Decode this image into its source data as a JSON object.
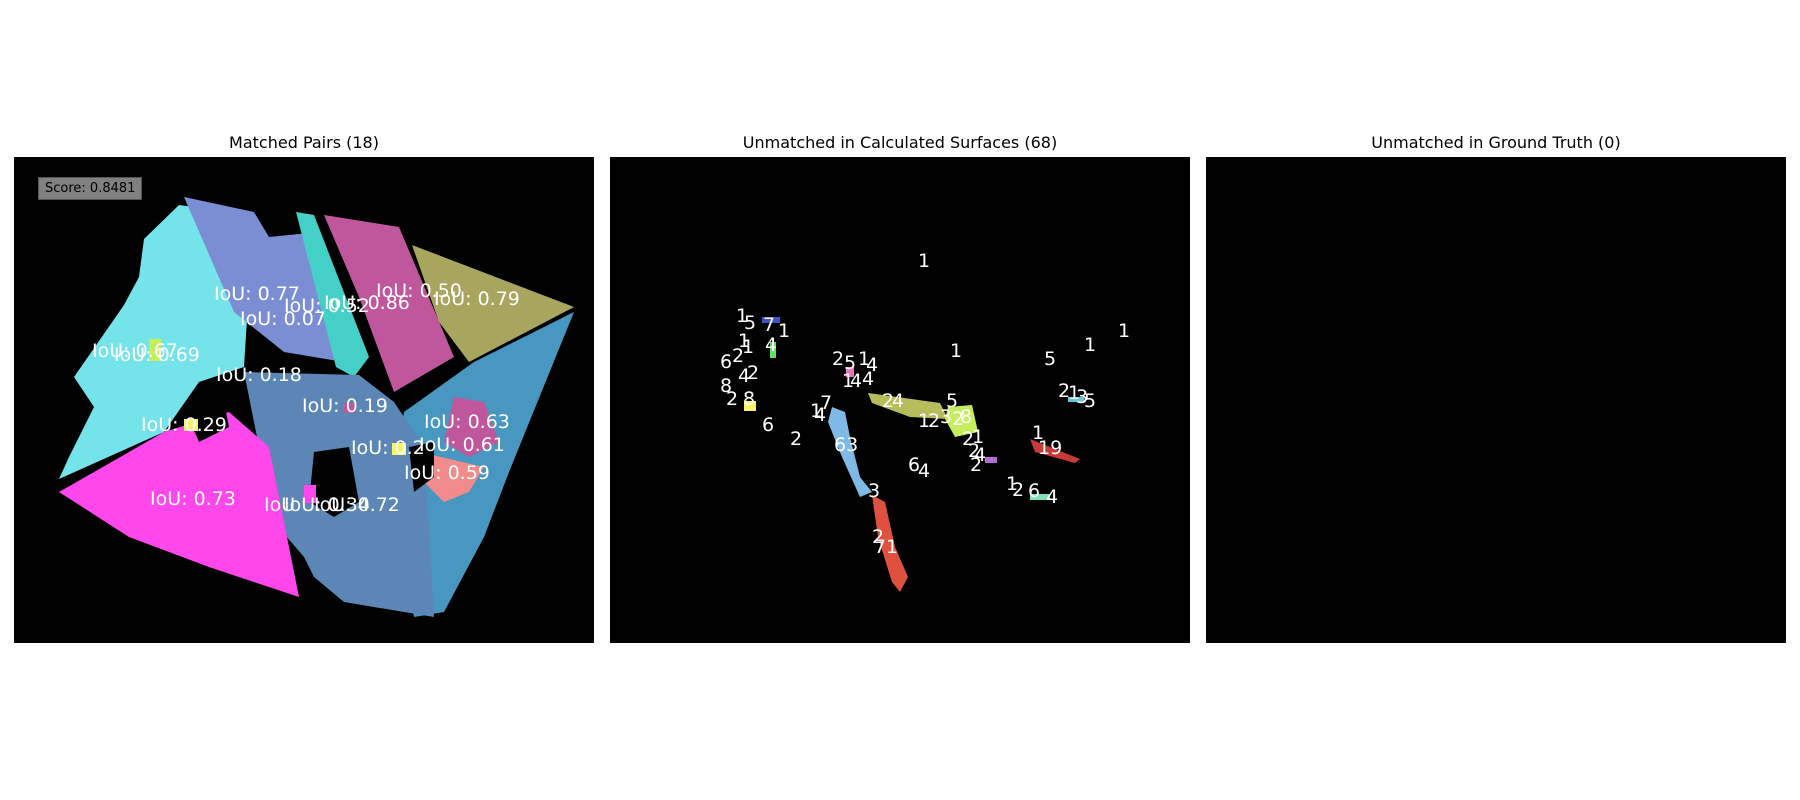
{
  "panels": {
    "matched": {
      "title": "Matched Pairs (18)",
      "score": "Score: 0.8481",
      "iou_labels": [
        "IoU: 0.77",
        "IoU: 0.07",
        "IoU: 0.52",
        "IoU: 0.86",
        "IoU: 0.50",
        "IoU: 0.79",
        "IoU: 0.67",
        "IoU: 0.69",
        "IoU: 0.18",
        "IoU: 0.19",
        "IoU: 0.29",
        "IoU: 0.63",
        "IoU: 0.61",
        "IoU: 0.2",
        "IoU: 0.59",
        "IoU: 0.73",
        "IoU",
        "IoU: 0.34",
        "IoU: 0.72"
      ]
    },
    "unmatched_calc": {
      "title": "Unmatched in Calculated Surfaces (68)",
      "labels": [
        "1",
        "1",
        "5",
        "7",
        "1",
        "1",
        "1",
        "4",
        "6",
        "2",
        "4",
        "2",
        "8",
        "2",
        "8",
        "6",
        "2",
        "2",
        "5",
        "1",
        "4",
        "1",
        "4",
        "4",
        "2",
        "4",
        "5",
        "1",
        "7",
        "4",
        "63",
        "1",
        "2",
        "3",
        "2",
        "8",
        "2",
        "1",
        "2",
        "4",
        "2",
        "6",
        "4",
        "3",
        "2",
        "7",
        "1",
        "1",
        "1",
        "5",
        "2",
        "1",
        "3",
        "5",
        "1",
        "19",
        "1",
        "2",
        "6",
        "4",
        "1"
      ]
    },
    "unmatched_gt": {
      "title": "Unmatched in Ground Truth (0)"
    }
  },
  "colors": {
    "cyan": "#74e3ea",
    "periwinkle": "#7b8ed4",
    "teal": "#44d0c6",
    "magenta_rose": "#c0579c",
    "olive": "#a8a55f",
    "steel_blue": "#5b86b5",
    "ocean_blue": "#4797c1",
    "hot_pink": "#ff47ec",
    "salmon": "#f28c8c",
    "yellow": "#f8f36a",
    "red": "#e0503f",
    "sky": "#7fb9e6",
    "khaki": "#b7bd5c",
    "lime": "#c4ee5c"
  }
}
